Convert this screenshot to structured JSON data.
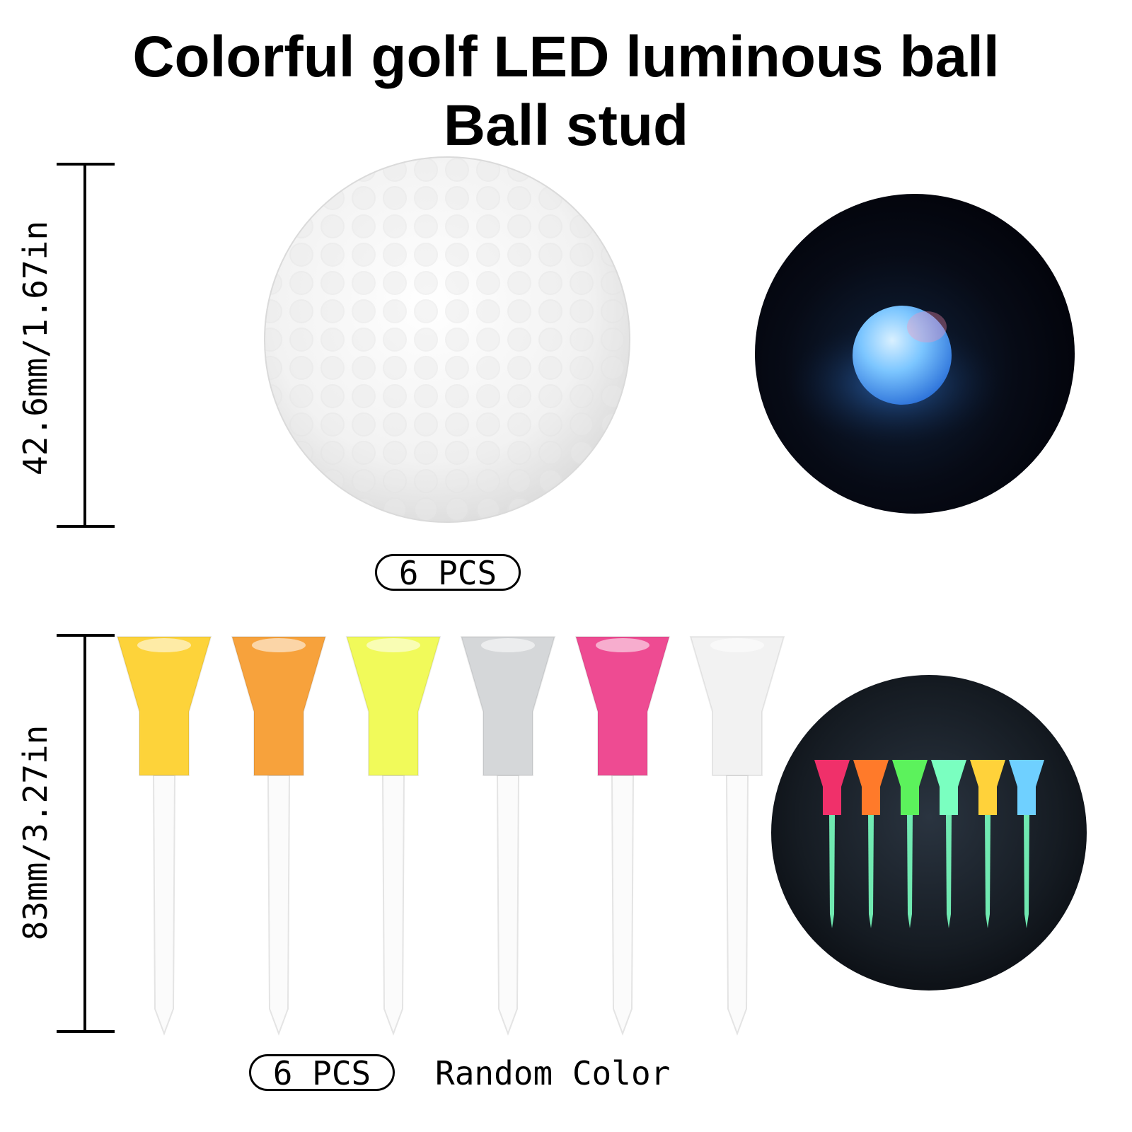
{
  "header": {
    "title_line1": "Colorful golf LED luminous ball",
    "title_line2": "Ball stud"
  },
  "ball_section": {
    "dimension_label": "42.6mm/1.67in",
    "quantity_label": "6 PCS",
    "ball_color": "#f4f4f4",
    "glow_color": "#4aa8ff"
  },
  "tee_section": {
    "dimension_label": "83mm/3.27in",
    "quantity_label": "6 PCS",
    "color_note": "Random Color",
    "tee_colors": [
      "#fdd33a",
      "#f7a23c",
      "#f1fa5a",
      "#d5d7d9",
      "#ee4b92",
      "#f2f2f2"
    ],
    "glow_tee_colors": [
      "#f0306a",
      "#ff7a2a",
      "#5cf25c",
      "#7affc0",
      "#ffd23a",
      "#6fd0ff"
    ]
  }
}
